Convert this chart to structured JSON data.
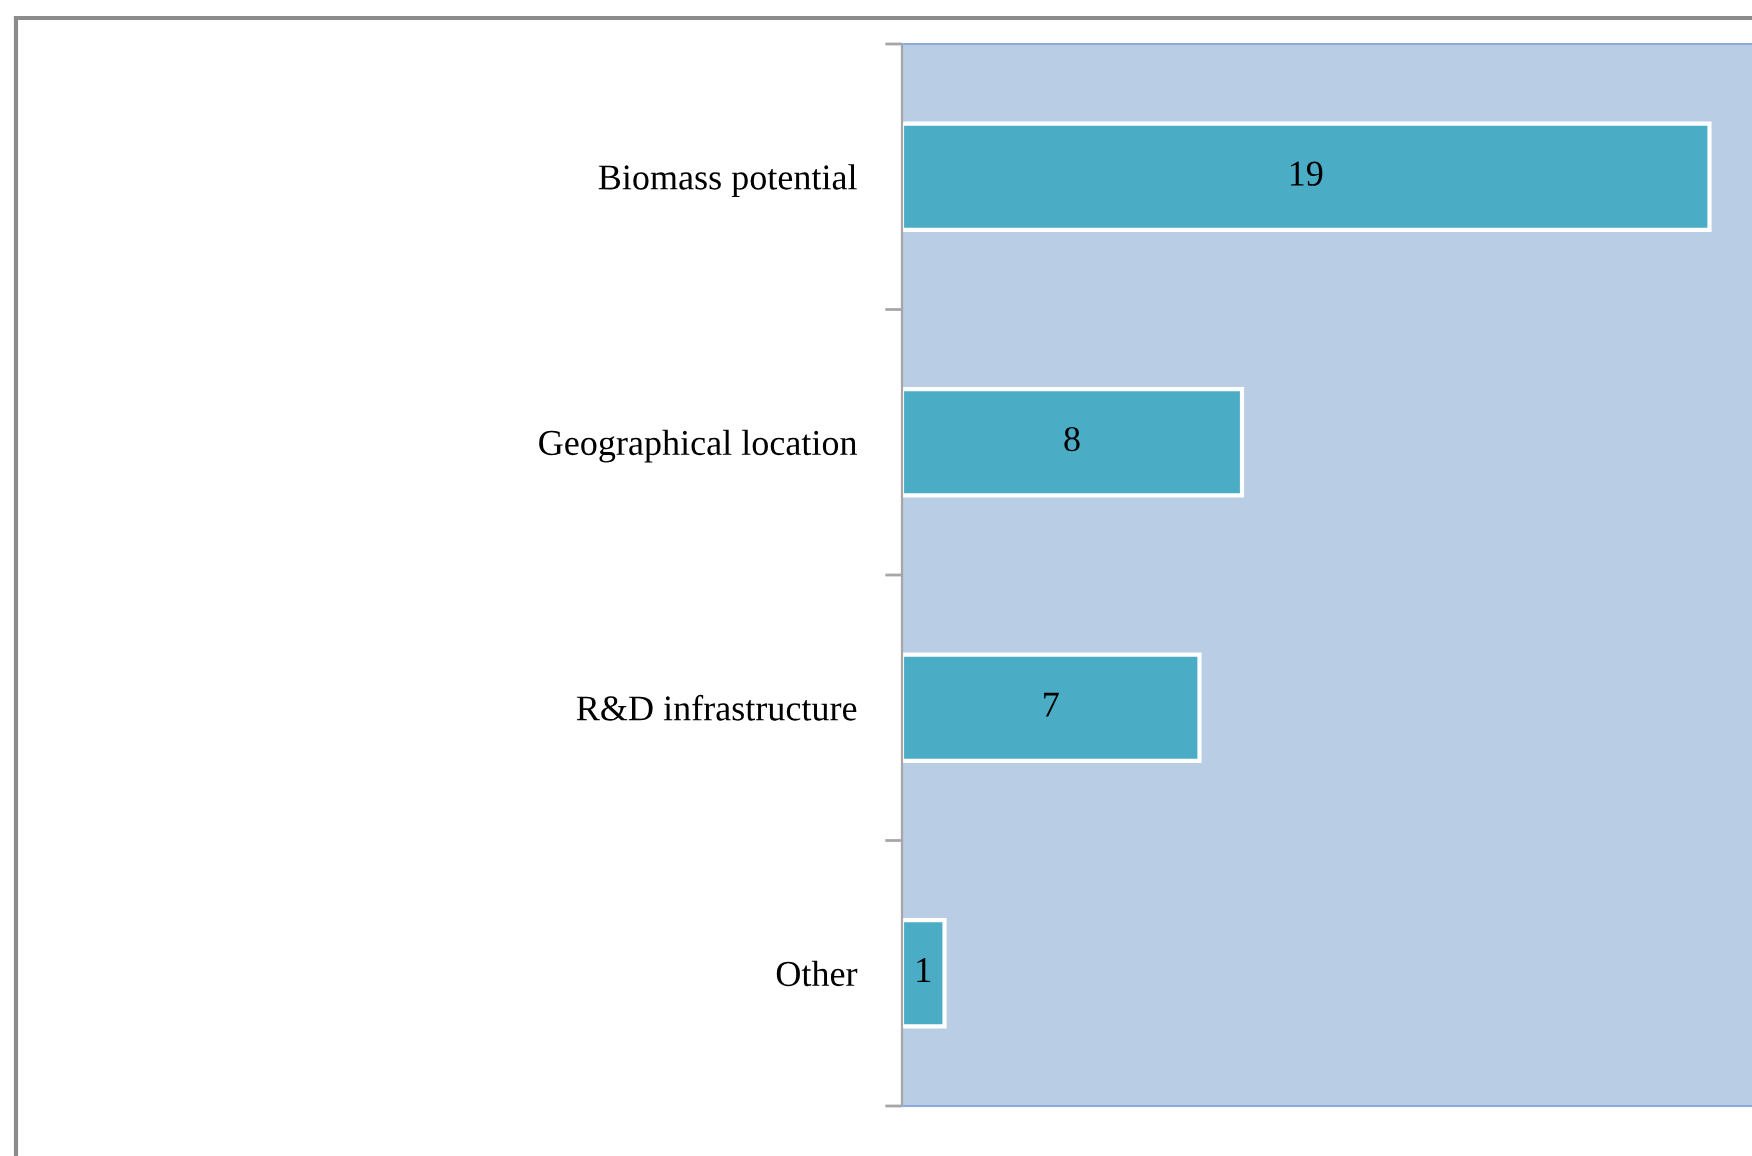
{
  "chart_data": {
    "type": "bar",
    "orientation": "horizontal",
    "categories": [
      "Biomass potential",
      "Geographical location",
      "R&D infrastructure",
      "Other"
    ],
    "values": [
      19,
      8,
      7,
      1
    ],
    "color": "#4bacc6",
    "xlim": [
      0,
      20
    ],
    "data_labels": true,
    "grid": false,
    "legend": false,
    "tick_labels": "y"
  }
}
